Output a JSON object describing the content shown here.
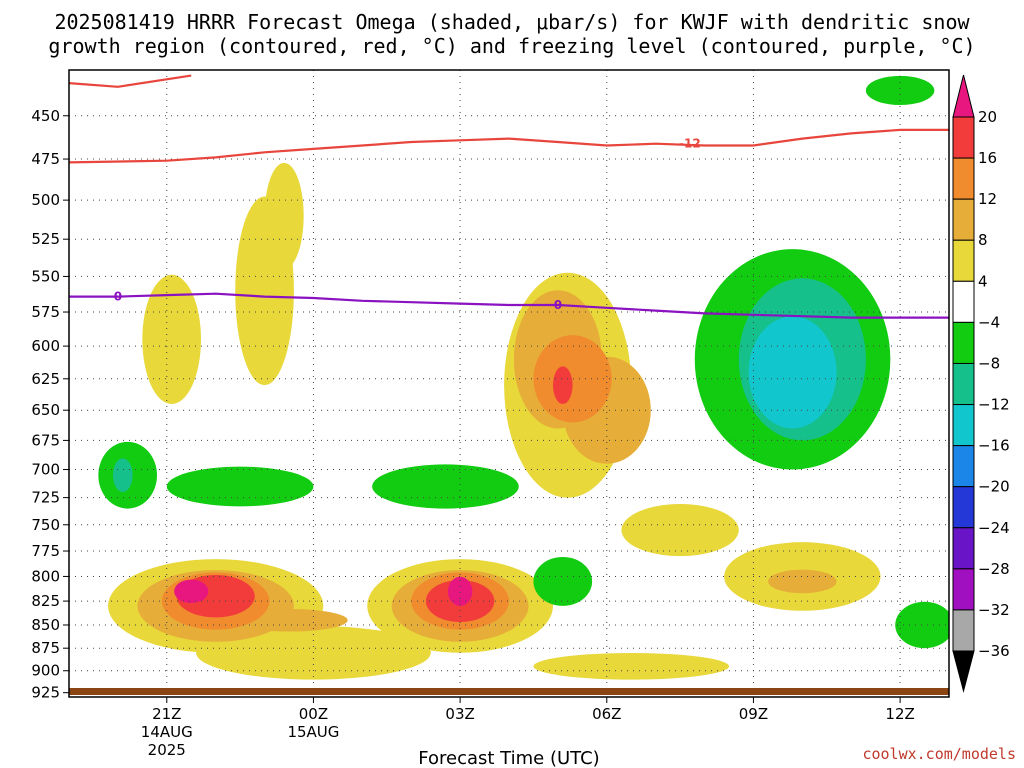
{
  "title": {
    "line1": "2025081419 HRRR Forecast Omega (shaded, μbar/s) for KWJF with dendritic snow",
    "line2": "growth region (contoured, red, °C) and freezing level (contoured, purple, °C)"
  },
  "watermark": "coolwx.com/models",
  "chart_data": {
    "type": "heatmap",
    "xlabel": "Forecast Time (UTC)",
    "ylabel": "",
    "x_ticks": [
      {
        "t": 2,
        "label": "21Z",
        "sub1": "14AUG",
        "sub2": "2025"
      },
      {
        "t": 5,
        "label": "00Z",
        "sub1": "15AUG",
        "sub2": ""
      },
      {
        "t": 8,
        "label": "03Z",
        "sub1": "",
        "sub2": ""
      },
      {
        "t": 11,
        "label": "06Z",
        "sub1": "",
        "sub2": ""
      },
      {
        "t": 14,
        "label": "09Z",
        "sub1": "",
        "sub2": ""
      },
      {
        "t": 17,
        "label": "12Z",
        "sub1": "",
        "sub2": ""
      }
    ],
    "xlim": [
      0,
      18
    ],
    "y_ticks": [
      450,
      475,
      500,
      525,
      550,
      575,
      600,
      625,
      650,
      675,
      700,
      725,
      750,
      775,
      800,
      825,
      850,
      875,
      900,
      925
    ],
    "ylim": [
      425,
      930
    ],
    "y_scale": "log-pressure (inverted)",
    "grid": true,
    "colorbar": {
      "levels": [
        "20",
        "16",
        "12",
        "8",
        "4",
        "−4",
        "−8",
        "−12",
        "−16",
        "−20",
        "−24",
        "−28",
        "−32",
        "−36"
      ],
      "colors": [
        "#e8177f",
        "#f23c3c",
        "#f08c2e",
        "#e6ae38",
        "#e8d83a",
        "#ffffff",
        "#11cc11",
        "#16c08a",
        "#11c6cc",
        "#1b86e8",
        "#2438d8",
        "#6a14c8",
        "#a010c0",
        "#a8a8a8",
        "#000000"
      ]
    },
    "omega_fields": [
      {
        "level": 4,
        "color": "#e8d83a",
        "blobs": [
          {
            "t": 2.1,
            "p": 595,
            "st": 0.6,
            "sp": 50
          },
          {
            "t": 4.0,
            "p": 560,
            "st": 0.6,
            "sp": 70
          },
          {
            "t": 4.4,
            "p": 510,
            "st": 0.4,
            "sp": 35
          },
          {
            "t": 10.2,
            "p": 630,
            "st": 1.3,
            "sp": 95
          },
          {
            "t": 12.5,
            "p": 755,
            "st": 1.2,
            "sp": 25
          },
          {
            "t": 15.0,
            "p": 800,
            "st": 1.6,
            "sp": 35
          },
          {
            "t": 3.0,
            "p": 830,
            "st": 2.2,
            "sp": 50
          },
          {
            "t": 8.0,
            "p": 830,
            "st": 1.9,
            "sp": 50
          },
          {
            "t": 5.0,
            "p": 880,
            "st": 2.4,
            "sp": 30
          },
          {
            "t": 11.5,
            "p": 895,
            "st": 2.0,
            "sp": 15
          }
        ]
      },
      {
        "level": 8,
        "color": "#e6ae38",
        "blobs": [
          {
            "t": 10.0,
            "p": 610,
            "st": 0.9,
            "sp": 55
          },
          {
            "t": 11.0,
            "p": 650,
            "st": 0.9,
            "sp": 45
          },
          {
            "t": 15.0,
            "p": 805,
            "st": 0.7,
            "sp": 12
          },
          {
            "t": 3.0,
            "p": 830,
            "st": 1.6,
            "sp": 38
          },
          {
            "t": 8.0,
            "p": 830,
            "st": 1.4,
            "sp": 38
          },
          {
            "t": 4.5,
            "p": 845,
            "st": 1.2,
            "sp": 12
          }
        ]
      },
      {
        "level": 12,
        "color": "#f08c2e",
        "blobs": [
          {
            "t": 10.3,
            "p": 625,
            "st": 0.8,
            "sp": 35
          },
          {
            "t": 3.0,
            "p": 825,
            "st": 1.1,
            "sp": 30
          },
          {
            "t": 8.0,
            "p": 825,
            "st": 1.0,
            "sp": 30
          }
        ]
      },
      {
        "level": 16,
        "color": "#f23c3c",
        "blobs": [
          {
            "t": 10.1,
            "p": 630,
            "st": 0.2,
            "sp": 15
          },
          {
            "t": 3.0,
            "p": 820,
            "st": 0.8,
            "sp": 22
          },
          {
            "t": 8.0,
            "p": 825,
            "st": 0.7,
            "sp": 22
          }
        ]
      },
      {
        "level": 20,
        "color": "#e8177f",
        "blobs": [
          {
            "t": 2.5,
            "p": 815,
            "st": 0.35,
            "sp": 12
          },
          {
            "t": 8.0,
            "p": 815,
            "st": 0.25,
            "sp": 15
          }
        ]
      },
      {
        "level": -4,
        "color": "#11cc11",
        "blobs": [
          {
            "t": 1.2,
            "p": 705,
            "st": 0.6,
            "sp": 30
          },
          {
            "t": 3.5,
            "p": 715,
            "st": 1.5,
            "sp": 18
          },
          {
            "t": 7.7,
            "p": 715,
            "st": 1.5,
            "sp": 20
          },
          {
            "t": 14.8,
            "p": 610,
            "st": 2.0,
            "sp": 90
          },
          {
            "t": 17.5,
            "p": 850,
            "st": 0.6,
            "sp": 25
          },
          {
            "t": 10.1,
            "p": 805,
            "st": 0.6,
            "sp": 25
          },
          {
            "t": 17.0,
            "p": 436,
            "st": 0.7,
            "sp": 8
          }
        ]
      },
      {
        "level": -8,
        "color": "#16c08a",
        "blobs": [
          {
            "t": 15.0,
            "p": 610,
            "st": 1.3,
            "sp": 65
          },
          {
            "t": 1.1,
            "p": 705,
            "st": 0.2,
            "sp": 15
          }
        ]
      },
      {
        "level": -12,
        "color": "#11c6cc",
        "blobs": [
          {
            "t": 14.8,
            "p": 620,
            "st": 0.9,
            "sp": 45
          }
        ]
      }
    ],
    "dgz_contour": {
      "label": "-12",
      "color": "#e8453c",
      "points": [
        [
          0,
          477
        ],
        [
          2,
          476
        ],
        [
          3,
          474
        ],
        [
          4,
          471
        ],
        [
          5,
          469
        ],
        [
          6,
          467
        ],
        [
          7,
          465
        ],
        [
          8,
          464
        ],
        [
          9,
          463
        ],
        [
          10,
          465
        ],
        [
          11,
          467
        ],
        [
          12,
          466
        ],
        [
          13,
          467
        ],
        [
          14,
          467
        ],
        [
          15,
          463
        ],
        [
          16,
          460
        ],
        [
          17,
          458
        ],
        [
          18,
          458
        ]
      ],
      "upper_points": [
        [
          0,
          432
        ],
        [
          1,
          434
        ],
        [
          2.5,
          428
        ]
      ]
    },
    "freezing_level": {
      "label": "0",
      "color": "#8a12c0",
      "points": [
        [
          0,
          564
        ],
        [
          1,
          564
        ],
        [
          2,
          563
        ],
        [
          3,
          562
        ],
        [
          4,
          564
        ],
        [
          5,
          565
        ],
        [
          6,
          567
        ],
        [
          7,
          568
        ],
        [
          8,
          569
        ],
        [
          9,
          570
        ],
        [
          10,
          570
        ],
        [
          11,
          572
        ],
        [
          12,
          574
        ],
        [
          13,
          576
        ],
        [
          14,
          577
        ],
        [
          15,
          578
        ],
        [
          16,
          579
        ],
        [
          17,
          579
        ],
        [
          18,
          579
        ]
      ]
    }
  }
}
